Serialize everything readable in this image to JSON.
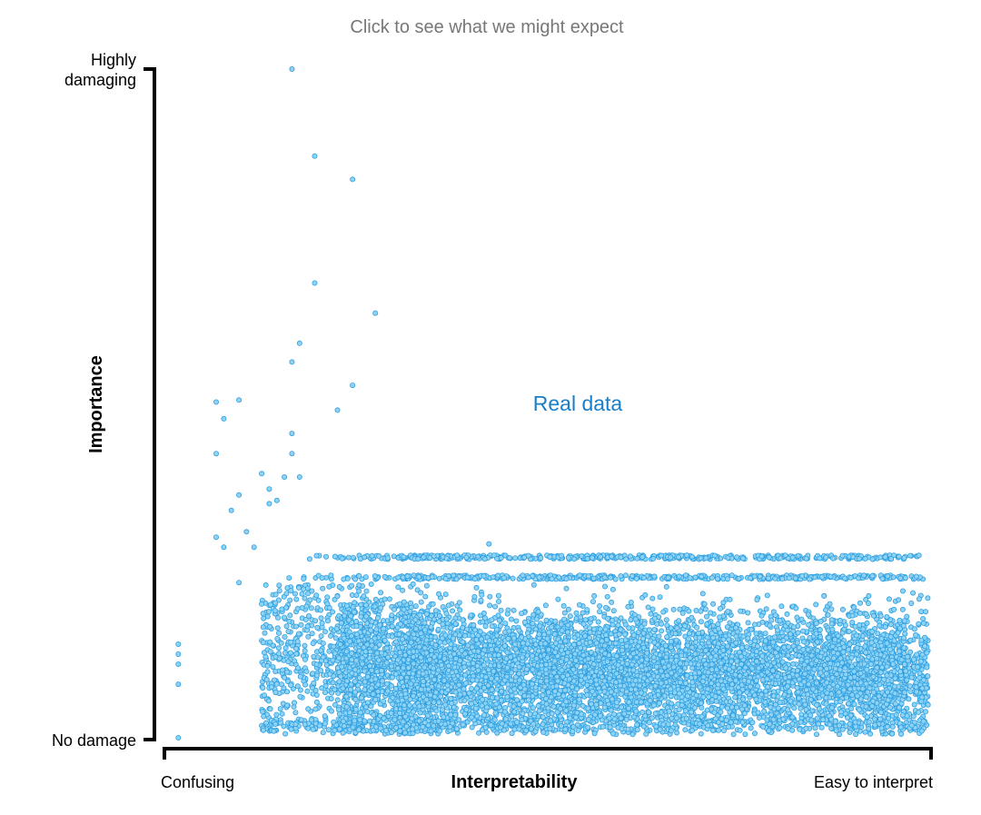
{
  "prompt": "Click to see what we might expect",
  "chart_data": {
    "type": "scatter",
    "title": "",
    "xlabel": "Interpretability",
    "ylabel": "Importance",
    "x_tick_labels": [
      "Confusing",
      "Easy to interpret"
    ],
    "y_tick_labels": [
      "No damage",
      "Highly damaging"
    ],
    "x_range": [
      0,
      1
    ],
    "y_range": [
      0,
      1
    ],
    "grid": false,
    "colors": {
      "point_fill": "#8fd3f4",
      "point_stroke": "#2f9fe0",
      "series_label": "#1a7fc8",
      "axis": "#000000",
      "prompt": "#777777"
    },
    "annotation": "Real data",
    "series": [
      {
        "note": "sparse outliers at the confusing end",
        "points": [
          [
            0.16,
            1.0
          ],
          [
            0.19,
            0.87
          ],
          [
            0.24,
            0.835
          ],
          [
            0.19,
            0.68
          ],
          [
            0.17,
            0.59
          ],
          [
            0.16,
            0.562
          ],
          [
            0.27,
            0.635
          ],
          [
            0.24,
            0.527
          ],
          [
            0.07,
            0.477
          ],
          [
            0.16,
            0.455
          ],
          [
            0.06,
            0.502
          ],
          [
            0.09,
            0.505
          ],
          [
            0.16,
            0.425
          ],
          [
            0.06,
            0.425
          ],
          [
            0.12,
            0.395
          ],
          [
            0.15,
            0.39
          ],
          [
            0.17,
            0.39
          ],
          [
            0.09,
            0.363
          ],
          [
            0.13,
            0.372
          ],
          [
            0.13,
            0.35
          ],
          [
            0.07,
            0.285
          ],
          [
            0.22,
            0.49
          ],
          [
            0.06,
            0.3
          ],
          [
            0.08,
            0.34
          ],
          [
            0.1,
            0.308
          ],
          [
            0.11,
            0.285
          ],
          [
            0.14,
            0.355
          ],
          [
            0.42,
            0.29
          ],
          [
            0.09,
            0.232
          ],
          [
            0.12,
            0.2
          ],
          [
            0.01,
            0.14
          ],
          [
            0.01,
            0.125
          ],
          [
            0.01,
            0.11
          ],
          [
            0.01,
            0.08
          ],
          [
            0.01,
            0.0
          ]
        ]
      }
    ],
    "dense_cluster": {
      "description": "thousands of points concentrated at low importance across mid-to-high interpretability",
      "x_range": [
        0.12,
        1.0
      ],
      "y_core": [
        0.02,
        0.2
      ],
      "y_mode": 0.1,
      "y_upper_band": 0.24,
      "y_top_band": 0.27,
      "y_bottom_band": 0.01,
      "approx_count": 9000
    }
  }
}
